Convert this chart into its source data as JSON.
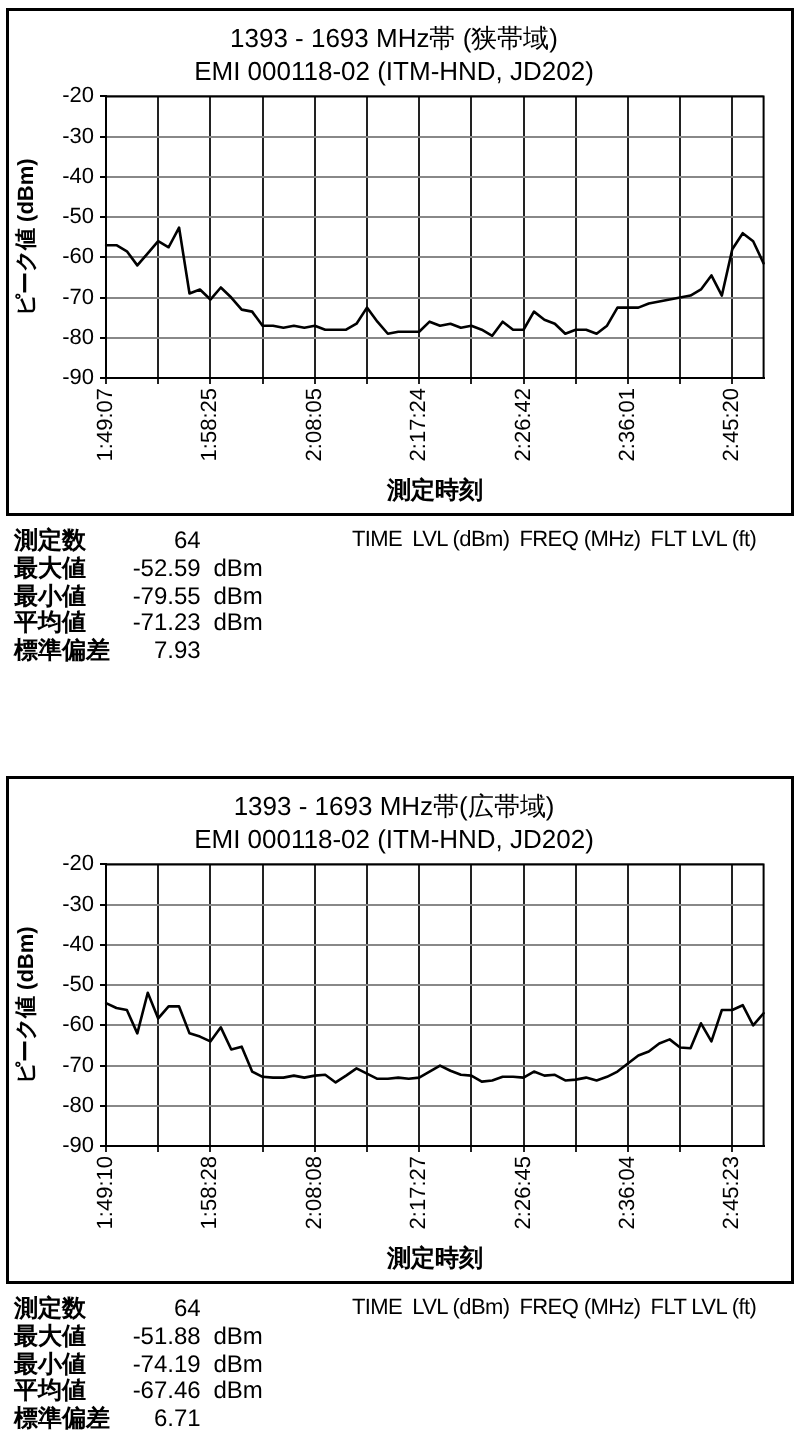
{
  "chart_data": [
    {
      "type": "line",
      "title": "1393 - 1693 MHz帯 (狭帯域)",
      "subtitle": "EMI 000118-02 (ITM-HND, JD202)",
      "xlabel": "測定時刻",
      "ylabel": "ピーク値 (dBm)",
      "categories": [
        "1:49:07",
        null,
        null,
        null,
        null,
        null,
        null,
        null,
        null,
        null,
        "1:58:25",
        null,
        null,
        null,
        null,
        null,
        null,
        null,
        null,
        null,
        "2:08:05",
        null,
        null,
        null,
        null,
        null,
        null,
        null,
        null,
        null,
        "2:17:24",
        null,
        null,
        null,
        null,
        null,
        null,
        null,
        null,
        null,
        "2:26:42",
        null,
        null,
        null,
        null,
        null,
        null,
        null,
        null,
        null,
        "2:36:01",
        null,
        null,
        null,
        null,
        null,
        null,
        null,
        null,
        null,
        "2:45:20",
        null,
        null,
        null
      ],
      "series": [
        {
          "color": "#000000",
          "values": [
            -57,
            -57,
            -58.5,
            -62,
            -59,
            -56,
            -57.5,
            -52.6,
            -69,
            -68,
            -70.5,
            -67.5,
            -70,
            -73,
            -73.5,
            -77,
            -77,
            -77.5,
            -77,
            -77.5,
            -77,
            -78,
            -78,
            -78,
            -76.5,
            -72.5,
            -76,
            -79,
            -78.5,
            -78.5,
            -78.5,
            -76,
            -77,
            -76.5,
            -77.5,
            -77,
            -78,
            -79.5,
            -76,
            -78,
            -78,
            -73.5,
            -75.5,
            -76.5,
            -79,
            -78,
            -78,
            -79,
            -77,
            -72.5,
            -72.5,
            -72.5,
            -71.5,
            -71,
            -70.5,
            -70,
            -69.5,
            -68,
            -64.5,
            -69.5,
            -58,
            -54,
            -56,
            -61.5
          ]
        }
      ],
      "ylim": [
        -90,
        -20
      ],
      "yticks": [
        -90,
        -80,
        -70,
        -60,
        -50,
        -40,
        -30,
        -20
      ],
      "grid": true,
      "legend": false,
      "marker": "none",
      "line_style": "solid",
      "annotations": [
        "測定数 64",
        "最大値 -52.59 dBm",
        "最小値 -79.55 dBm",
        "平均値 -71.23 dBm",
        "標準偏差 7.93",
        "TIME",
        "LVL (dBm)",
        "FREQ (MHz)",
        "FLT LVL (ft)"
      ]
    },
    {
      "type": "line",
      "title": "1393 - 1693 MHz帯(広帯域)",
      "subtitle": "EMI 000118-02 (ITM-HND, JD202)",
      "xlabel": "測定時刻",
      "ylabel": "ピーク値 (dBm)",
      "categories": [
        "1:49:10",
        null,
        null,
        null,
        null,
        null,
        null,
        null,
        null,
        null,
        "1:58:28",
        null,
        null,
        null,
        null,
        null,
        null,
        null,
        null,
        null,
        "2:08:08",
        null,
        null,
        null,
        null,
        null,
        null,
        null,
        null,
        null,
        "2:17:27",
        null,
        null,
        null,
        null,
        null,
        null,
        null,
        null,
        null,
        "2:26:45",
        null,
        null,
        null,
        null,
        null,
        null,
        null,
        null,
        null,
        "2:36:04",
        null,
        null,
        null,
        null,
        null,
        null,
        null,
        null,
        null,
        "2:45:23",
        null,
        null,
        null
      ],
      "series": [
        {
          "color": "#000000",
          "values": [
            -54.5,
            -55.7,
            -56.2,
            -62,
            -51.9,
            -58.3,
            -55.3,
            -55.3,
            -62,
            -62.8,
            -64,
            -60.5,
            -66,
            -65.3,
            -71.5,
            -72.8,
            -73,
            -73,
            -72.5,
            -73,
            -72.5,
            -72.3,
            -74.2,
            -72.5,
            -70.7,
            -72,
            -73.3,
            -73.3,
            -73,
            -73.3,
            -73,
            -71.5,
            -70,
            -71.3,
            -72.3,
            -72.5,
            -74,
            -73.7,
            -72.8,
            -72.8,
            -73,
            -71.5,
            -72.5,
            -72.3,
            -73.7,
            -73.5,
            -73,
            -73.7,
            -72.8,
            -71.5,
            -69.5,
            -67.5,
            -66.5,
            -64.5,
            -63.5,
            -65.5,
            -65.7,
            -59.5,
            -64,
            -56.2,
            -56.2,
            -55,
            -60,
            -57
          ]
        }
      ],
      "ylim": [
        -90,
        -20
      ],
      "yticks": [
        -90,
        -80,
        -70,
        -60,
        -50,
        -40,
        -30,
        -20
      ],
      "grid": true,
      "legend": false,
      "marker": "none",
      "line_style": "solid",
      "annotations": [
        "測定数 64",
        "最大値 -51.88 dBm",
        "最小値 -74.19 dBm",
        "平均値 -67.46 dBm",
        "標準偏差 6.71",
        "TIME",
        "LVL (dBm)",
        "FREQ (MHz)",
        "FLT LVL (ft)"
      ]
    }
  ]
}
